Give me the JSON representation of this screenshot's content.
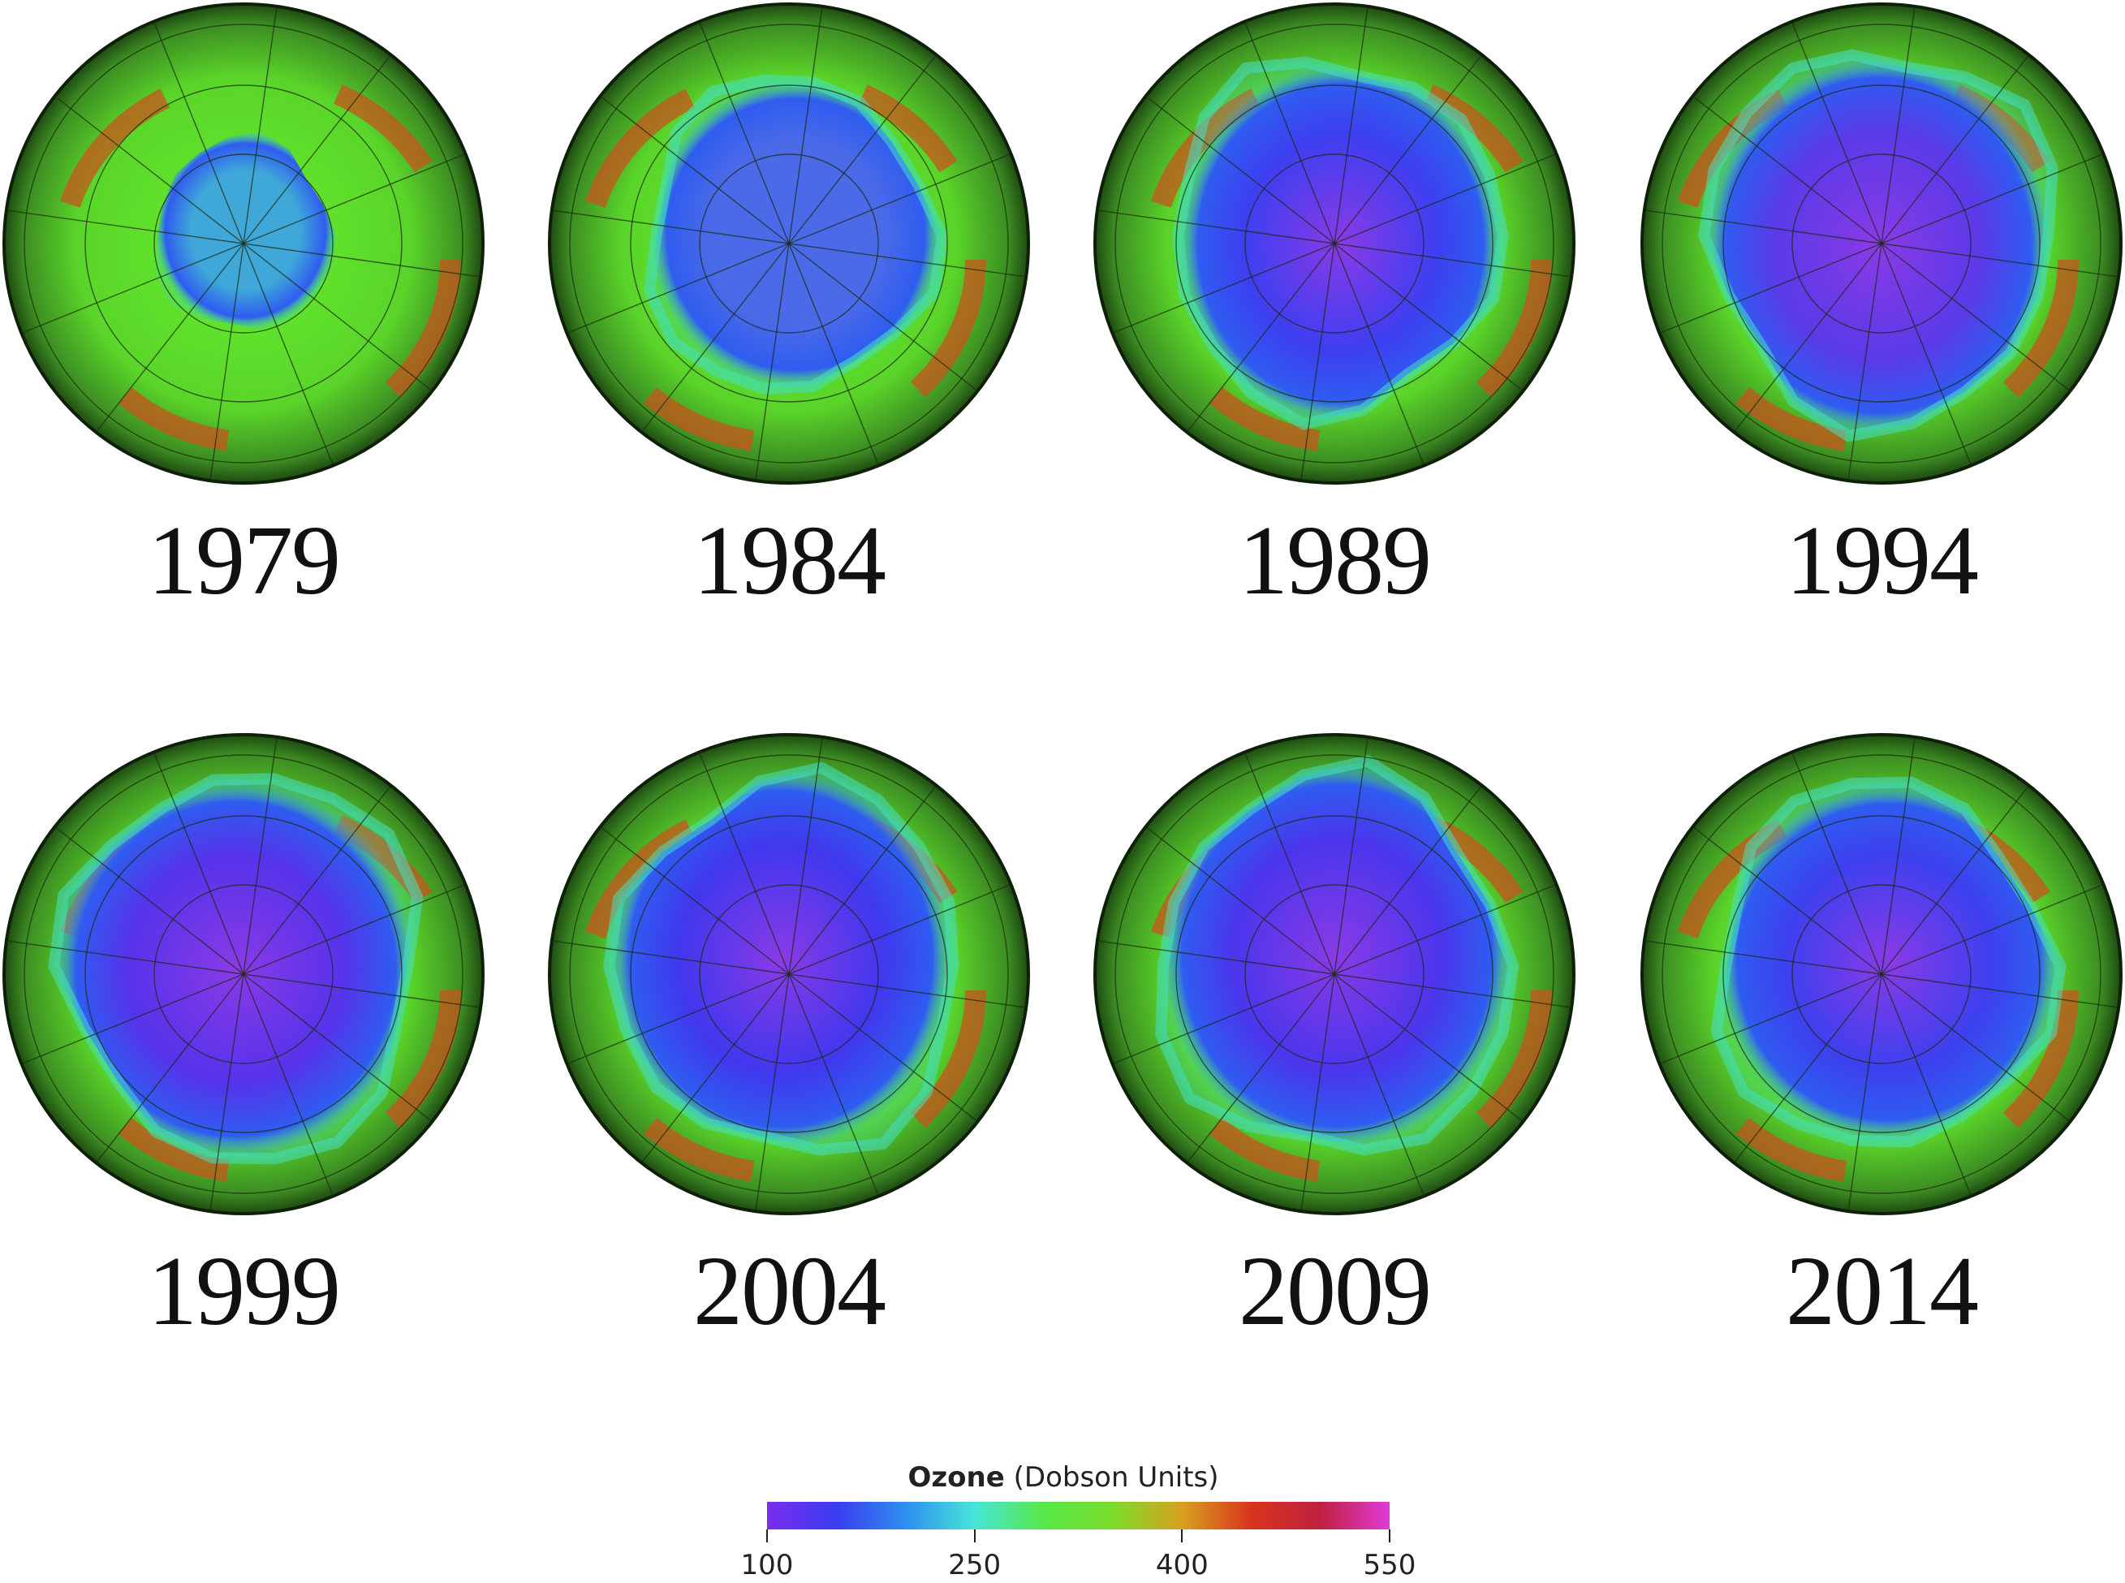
{
  "panels": [
    {
      "year": "1979",
      "hole": 0.0,
      "tint": "#3fa8d8"
    },
    {
      "year": "1984",
      "hole": 0.55,
      "tint": "#4a6ae8"
    },
    {
      "year": "1989",
      "hole": 0.75,
      "tint": "#3d3ff0"
    },
    {
      "year": "1994",
      "hole": 0.85,
      "tint": "#5a3ae8"
    },
    {
      "year": "1999",
      "hole": 0.9,
      "tint": "#5633ea"
    },
    {
      "year": "2004",
      "hole": 0.85,
      "tint": "#4038ee"
    },
    {
      "year": "2009",
      "hole": 0.88,
      "tint": "#4a36ec"
    },
    {
      "year": "2014",
      "hole": 0.8,
      "tint": "#3d40ee"
    }
  ],
  "legend": {
    "title_bold": "Ozone",
    "title_rest": " (Dobson Units)",
    "ticks": [
      "100",
      "250",
      "400",
      "550"
    ],
    "colors": [
      "#7b2cf0",
      "#3a3cf0",
      "#2f8ef0",
      "#46e6d8",
      "#58e84a",
      "#7cdc2a",
      "#d8a01e",
      "#d8341e",
      "#c02040",
      "#e13ad8"
    ]
  }
}
